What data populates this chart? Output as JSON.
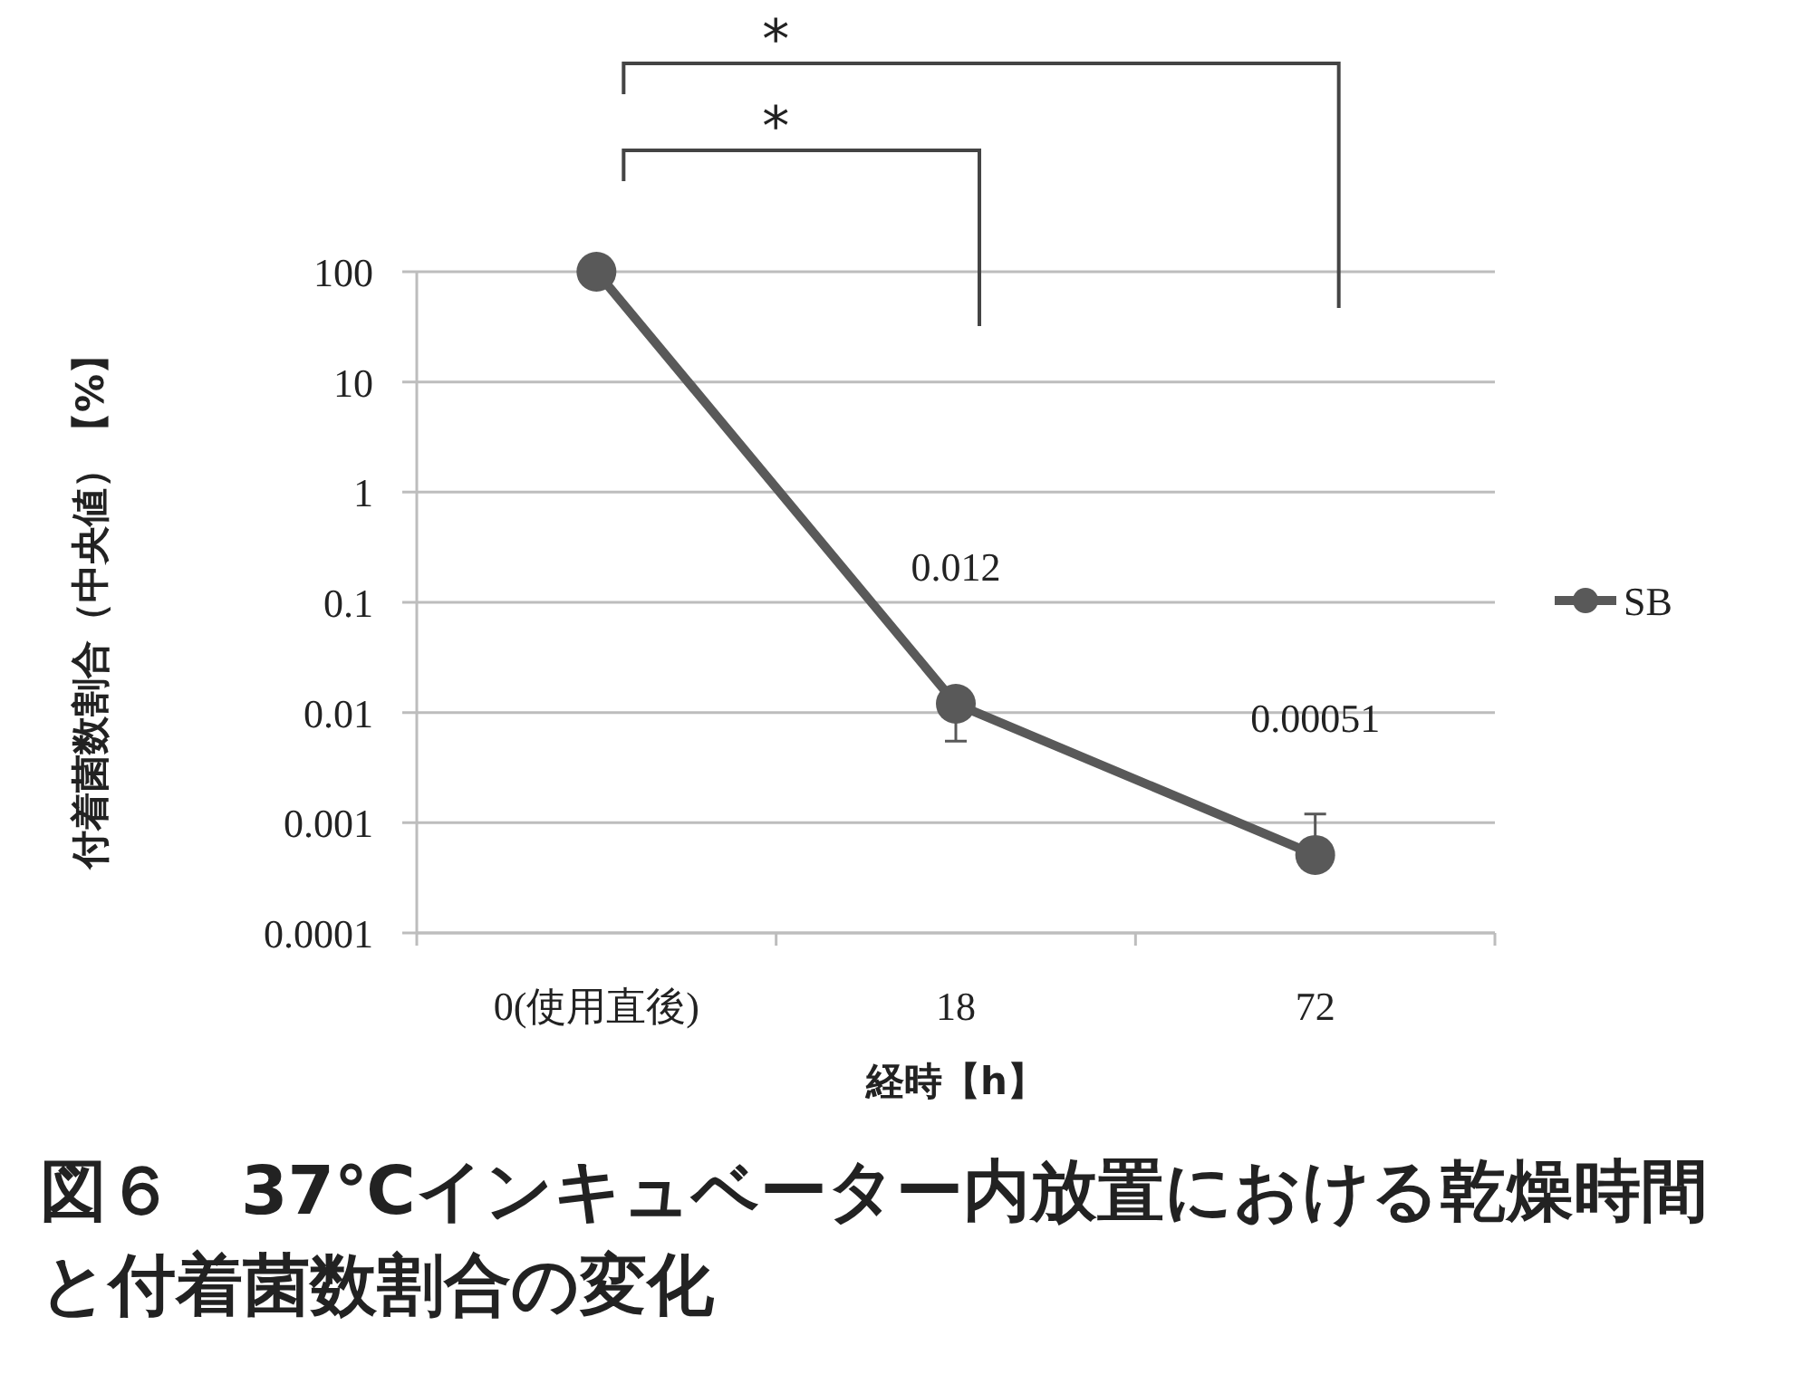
{
  "chart_data": {
    "type": "line",
    "title": "図６　37℃インキュベーター内放置における乾燥時間と付着菌数割合の変化",
    "xlabel": "経時【h】",
    "ylabel": "付着菌数割合（中央値）【%】",
    "categories": [
      "0(使用直後)",
      "18",
      "72"
    ],
    "series": [
      {
        "name": "SB",
        "color": "#595959",
        "values": [
          100,
          0.012,
          0.00051
        ],
        "value_labels": [
          null,
          "0.012",
          "0.00051"
        ],
        "errors": [
          null,
          [
            0.0055,
            0.012
          ],
          [
            0.00051,
            0.0012
          ]
        ]
      }
    ],
    "log": "y",
    "ylim": [
      0.0001,
      100
    ],
    "yticks": [
      0.0001,
      0.001,
      0.01,
      0.1,
      1,
      10,
      100
    ],
    "grid": "y",
    "legend": "right",
    "marker": "circle",
    "line_style": "solid",
    "annotations": [
      "*",
      "*"
    ]
  }
}
